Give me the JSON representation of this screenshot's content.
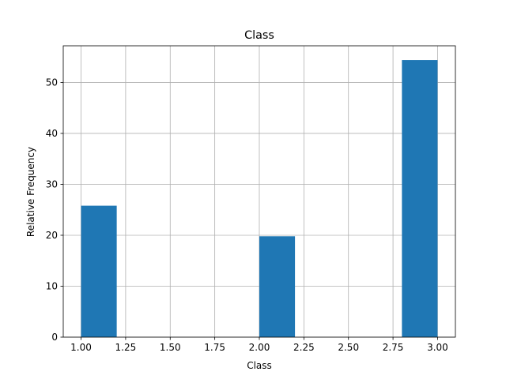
{
  "chart_data": {
    "type": "bar",
    "title": "Class",
    "xlabel": "Class",
    "ylabel": "Relative Frequency",
    "xlim": [
      0.9,
      3.1
    ],
    "ylim": [
      0,
      57.2
    ],
    "xticks": [
      "1.00",
      "1.25",
      "1.50",
      "1.75",
      "2.00",
      "2.25",
      "2.50",
      "2.75",
      "3.00"
    ],
    "yticks": [
      "0",
      "10",
      "20",
      "30",
      "40",
      "50"
    ],
    "grid": true,
    "bar_color": "#1f77b4",
    "bins": [
      {
        "start": 1.0,
        "end": 1.2,
        "value": 25.8
      },
      {
        "start": 1.2,
        "end": 1.4,
        "value": 0
      },
      {
        "start": 1.4,
        "end": 1.6,
        "value": 0
      },
      {
        "start": 1.6,
        "end": 1.8,
        "value": 0
      },
      {
        "start": 1.8,
        "end": 2.0,
        "value": 0
      },
      {
        "start": 2.0,
        "end": 2.2,
        "value": 19.8
      },
      {
        "start": 2.2,
        "end": 2.4,
        "value": 0
      },
      {
        "start": 2.4,
        "end": 2.6,
        "value": 0
      },
      {
        "start": 2.6,
        "end": 2.8,
        "value": 0
      },
      {
        "start": 2.8,
        "end": 3.0,
        "value": 54.4
      }
    ]
  }
}
